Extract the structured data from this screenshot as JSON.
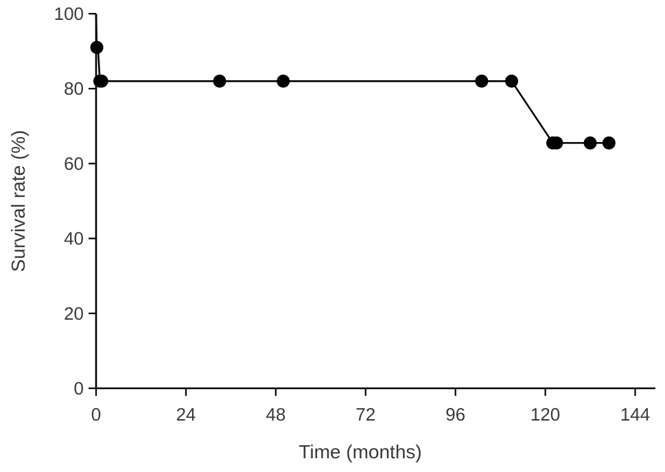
{
  "chart_data": {
    "type": "line",
    "xlabel": "Time (months)",
    "ylabel": "Survival rate (%)",
    "xlim": [
      0,
      148
    ],
    "ylim": [
      0,
      100
    ],
    "xticks": [
      0,
      24,
      48,
      72,
      96,
      120,
      144
    ],
    "yticks": [
      0,
      20,
      40,
      60,
      80,
      100
    ],
    "grid": false,
    "legend": "none",
    "line_color": "#000000",
    "series": [
      {
        "x": [
          0,
          0.2,
          0.5,
          1.0,
          1.5,
          33,
          50,
          103,
          111,
          122,
          123,
          132,
          137
        ],
        "y": [
          100,
          91,
          91,
          82,
          82,
          82,
          82,
          82,
          82,
          65.5,
          65.5,
          65.5,
          65.5
        ],
        "markers": [
          false,
          true,
          false,
          true,
          true,
          true,
          true,
          true,
          true,
          true,
          true,
          true,
          true
        ]
      }
    ]
  }
}
